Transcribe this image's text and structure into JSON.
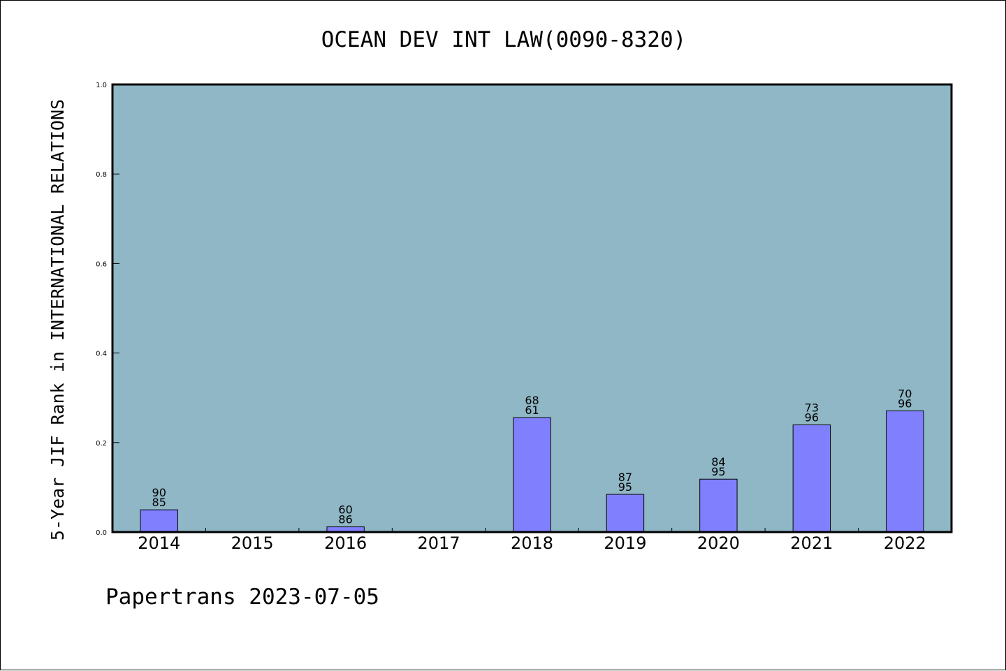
{
  "chart_data": {
    "type": "bar",
    "title": "OCEAN DEV INT LAW(0090-8320)",
    "xlabel": "",
    "ylabel": "5-Year JIF Rank in INTERNATIONAL RELATIONS",
    "categories": [
      "2014",
      "2015",
      "2016",
      "2017",
      "2018",
      "2019",
      "2020",
      "2021",
      "2022"
    ],
    "values": [
      0.0497,
      null,
      0.0116,
      null,
      0.2557,
      0.0842,
      0.1182,
      0.2395,
      0.2708
    ],
    "bar_labels": [
      {
        "top": "90",
        "bottom": "85"
      },
      null,
      {
        "top": "60",
        "bottom": "86"
      },
      null,
      {
        "top": "68",
        "bottom": "61"
      },
      {
        "top": "87",
        "bottom": "95"
      },
      {
        "top": "84",
        "bottom": "95"
      },
      {
        "top": "73",
        "bottom": "96"
      },
      {
        "top": "70",
        "bottom": "96"
      }
    ],
    "ylim": [
      0,
      1.0
    ],
    "yticks": [
      "0.0",
      "0.2",
      "0.4",
      "0.6",
      "0.8",
      "1.0"
    ],
    "grid": false,
    "colors": {
      "plot_background": "#8fb7c5",
      "bar_fill": "#8080ff",
      "bar_edge": "#000000",
      "page_background": "#ffffff"
    }
  },
  "footer": "Papertrans 2023-07-05"
}
